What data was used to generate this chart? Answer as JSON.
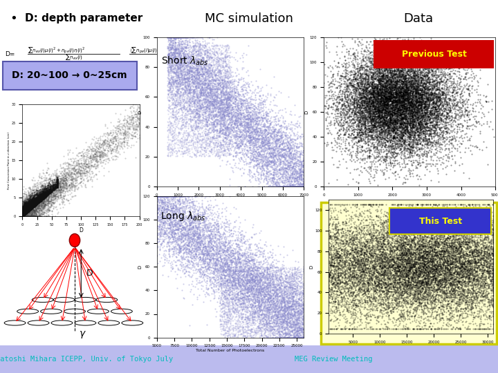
{
  "background_color": "#ffffff",
  "title_mc": "MC simulation",
  "title_data": "Data",
  "bullet_text": "D: depth parameter",
  "box_text": "D: 20~100 → 0~25cm",
  "box_bg": "#aaaaee",
  "box_edge": "#5555aa",
  "label_short": "Short $\\lambda_{abs}$",
  "label_long": "Long $\\lambda_{abs}$",
  "label_prev": "Previous Test",
  "label_this": "This Test",
  "prev_bg": "#cc0000",
  "prev_text_color": "#ffff00",
  "this_bg": "#3333cc",
  "this_text_color": "#ffff00",
  "this_border_color": "#cccc00",
  "this_panel_bg": "#ffffd0",
  "footer_bg": "#bbbbee",
  "footer_text": "Satoshi Mihara ICEPP, Univ. of Tokyo July",
  "footer_text2": "MEG Review Meeting",
  "footer_color": "#00bbbb",
  "scatter_color_mc": "#8888cc",
  "scatter_color_data": "#111111"
}
